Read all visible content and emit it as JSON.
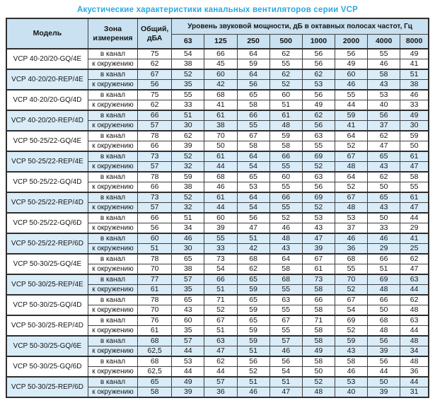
{
  "title": "Акустические характеристики канальных вентиляторов  серии VCP",
  "colors": {
    "title_text": "#29a8e0",
    "header_bg": "#c9e1f0",
    "shaded_row_bg": "#d9ecf8",
    "border": "#404040"
  },
  "table": {
    "headers": {
      "model": "Модель",
      "zone": "Зона измерения",
      "total": "Общий, дБА",
      "spl_group": "Уровень звуковой мощности, дБ в октавных полосах частот, Гц",
      "frequencies": [
        "63",
        "125",
        "250",
        "500",
        "1000",
        "2000",
        "4000",
        "8000"
      ]
    },
    "zone_labels": {
      "duct": "в канал",
      "env": "к окружению"
    },
    "rows": [
      {
        "model": "VCP 40-20/20-GQ/4E",
        "shaded": false,
        "duct": {
          "total": "75",
          "levels": [
            54,
            66,
            64,
            62,
            56,
            56,
            55,
            49
          ]
        },
        "env": {
          "total": "62",
          "levels": [
            38,
            45,
            59,
            55,
            56,
            49,
            46,
            41
          ]
        }
      },
      {
        "model": "VCP 40-20/20-REP/4E",
        "shaded": true,
        "duct": {
          "total": "67",
          "levels": [
            52,
            60,
            64,
            62,
            62,
            60,
            58,
            51
          ]
        },
        "env": {
          "total": "56",
          "levels": [
            35,
            42,
            56,
            52,
            53,
            46,
            43,
            38
          ]
        }
      },
      {
        "model": "VCP 40-20/20-GQ/4D",
        "shaded": false,
        "duct": {
          "total": "75",
          "levels": [
            55,
            68,
            65,
            60,
            56,
            55,
            53,
            46
          ]
        },
        "env": {
          "total": "62",
          "levels": [
            33,
            41,
            58,
            51,
            49,
            44,
            40,
            33
          ]
        }
      },
      {
        "model": "VCP 40-20/20-REP/4D",
        "shaded": true,
        "duct": {
          "total": "66",
          "levels": [
            51,
            61,
            66,
            61,
            62,
            59,
            56,
            49
          ]
        },
        "env": {
          "total": "57",
          "levels": [
            30,
            38,
            55,
            48,
            56,
            41,
            37,
            30
          ]
        }
      },
      {
        "model": "VCP 50-25/22-GQ/4E",
        "shaded": false,
        "duct": {
          "total": "78",
          "levels": [
            62,
            70,
            67,
            59,
            63,
            64,
            62,
            59
          ]
        },
        "env": {
          "total": "66",
          "levels": [
            39,
            50,
            58,
            58,
            55,
            52,
            47,
            50
          ]
        }
      },
      {
        "model": "VCP 50-25/22-REP/4E",
        "shaded": true,
        "duct": {
          "total": "73",
          "levels": [
            52,
            61,
            64,
            66,
            69,
            67,
            65,
            61
          ]
        },
        "env": {
          "total": "57",
          "levels": [
            32,
            44,
            54,
            55,
            52,
            48,
            43,
            47
          ]
        }
      },
      {
        "model": "VCP 50-25/22-GQ/4D",
        "shaded": false,
        "duct": {
          "total": "78",
          "levels": [
            59,
            68,
            65,
            60,
            63,
            64,
            62,
            58
          ]
        },
        "env": {
          "total": "66",
          "levels": [
            38,
            46,
            53,
            55,
            56,
            52,
            50,
            55
          ]
        }
      },
      {
        "model": "VCP 50-25/22-REP/4D",
        "shaded": true,
        "duct": {
          "total": "73",
          "levels": [
            52,
            61,
            64,
            66,
            69,
            67,
            65,
            61
          ]
        },
        "env": {
          "total": "57",
          "levels": [
            32,
            44,
            54,
            55,
            52,
            48,
            43,
            47
          ]
        }
      },
      {
        "model": "VCP 50-25/22-GQ/6D",
        "shaded": false,
        "duct": {
          "total": "66",
          "levels": [
            51,
            60,
            56,
            52,
            53,
            53,
            50,
            44
          ]
        },
        "env": {
          "total": "56",
          "levels": [
            34,
            39,
            47,
            46,
            43,
            37,
            33,
            29
          ]
        }
      },
      {
        "model": "VCP 50-25/22-REP/6D",
        "shaded": true,
        "duct": {
          "total": "60",
          "levels": [
            46,
            55,
            51,
            48,
            47,
            46,
            46,
            41
          ]
        },
        "env": {
          "total": "51",
          "levels": [
            30,
            33,
            42,
            43,
            39,
            36,
            29,
            25
          ]
        }
      },
      {
        "model": "VCP 50-30/25-GQ/4E",
        "shaded": false,
        "duct": {
          "total": "78",
          "levels": [
            65,
            73,
            68,
            64,
            67,
            68,
            66,
            62
          ]
        },
        "env": {
          "total": "70",
          "levels": [
            38,
            54,
            62,
            58,
            61,
            55,
            51,
            47
          ]
        }
      },
      {
        "model": "VCP 50-30/25-REP/4E",
        "shaded": true,
        "duct": {
          "total": "77",
          "levels": [
            57,
            66,
            65,
            68,
            73,
            70,
            69,
            63
          ]
        },
        "env": {
          "total": "61",
          "levels": [
            35,
            51,
            59,
            55,
            58,
            52,
            48,
            44
          ]
        }
      },
      {
        "model": "VCP 50-30/25-GQ/4D",
        "shaded": false,
        "duct": {
          "total": "78",
          "levels": [
            65,
            71,
            65,
            63,
            66,
            67,
            66,
            62
          ]
        },
        "env": {
          "total": "70",
          "levels": [
            43,
            52,
            59,
            55,
            58,
            54,
            50,
            48
          ]
        }
      },
      {
        "model": "VCP 50-30/25-REP/4D",
        "shaded": false,
        "duct": {
          "total": "76",
          "levels": [
            60,
            67,
            65,
            67,
            71,
            69,
            68,
            63
          ]
        },
        "env": {
          "total": "61",
          "levels": [
            35,
            51,
            59,
            55,
            58,
            52,
            48,
            44
          ]
        }
      },
      {
        "model": "VCP 50-30/25-GQ/6E",
        "shaded": true,
        "duct": {
          "total": "68",
          "levels": [
            57,
            63,
            59,
            57,
            58,
            59,
            56,
            48
          ]
        },
        "env": {
          "total": "62,5",
          "levels": [
            44,
            47,
            51,
            46,
            49,
            43,
            39,
            34
          ]
        }
      },
      {
        "model": "VCP 50-30/25-GQ/6D",
        "shaded": false,
        "duct": {
          "total": "68",
          "levels": [
            53,
            62,
            56,
            56,
            58,
            58,
            56,
            48
          ]
        },
        "env": {
          "total": "62,5",
          "levels": [
            44,
            44,
            52,
            54,
            50,
            46,
            44,
            36
          ]
        }
      },
      {
        "model": "VCP 50-30/25-REP/6D",
        "shaded": true,
        "duct": {
          "total": "65",
          "levels": [
            49,
            57,
            51,
            51,
            52,
            53,
            50,
            44
          ]
        },
        "env": {
          "total": "58",
          "levels": [
            39,
            36,
            46,
            47,
            48,
            40,
            39,
            31
          ]
        }
      }
    ]
  }
}
